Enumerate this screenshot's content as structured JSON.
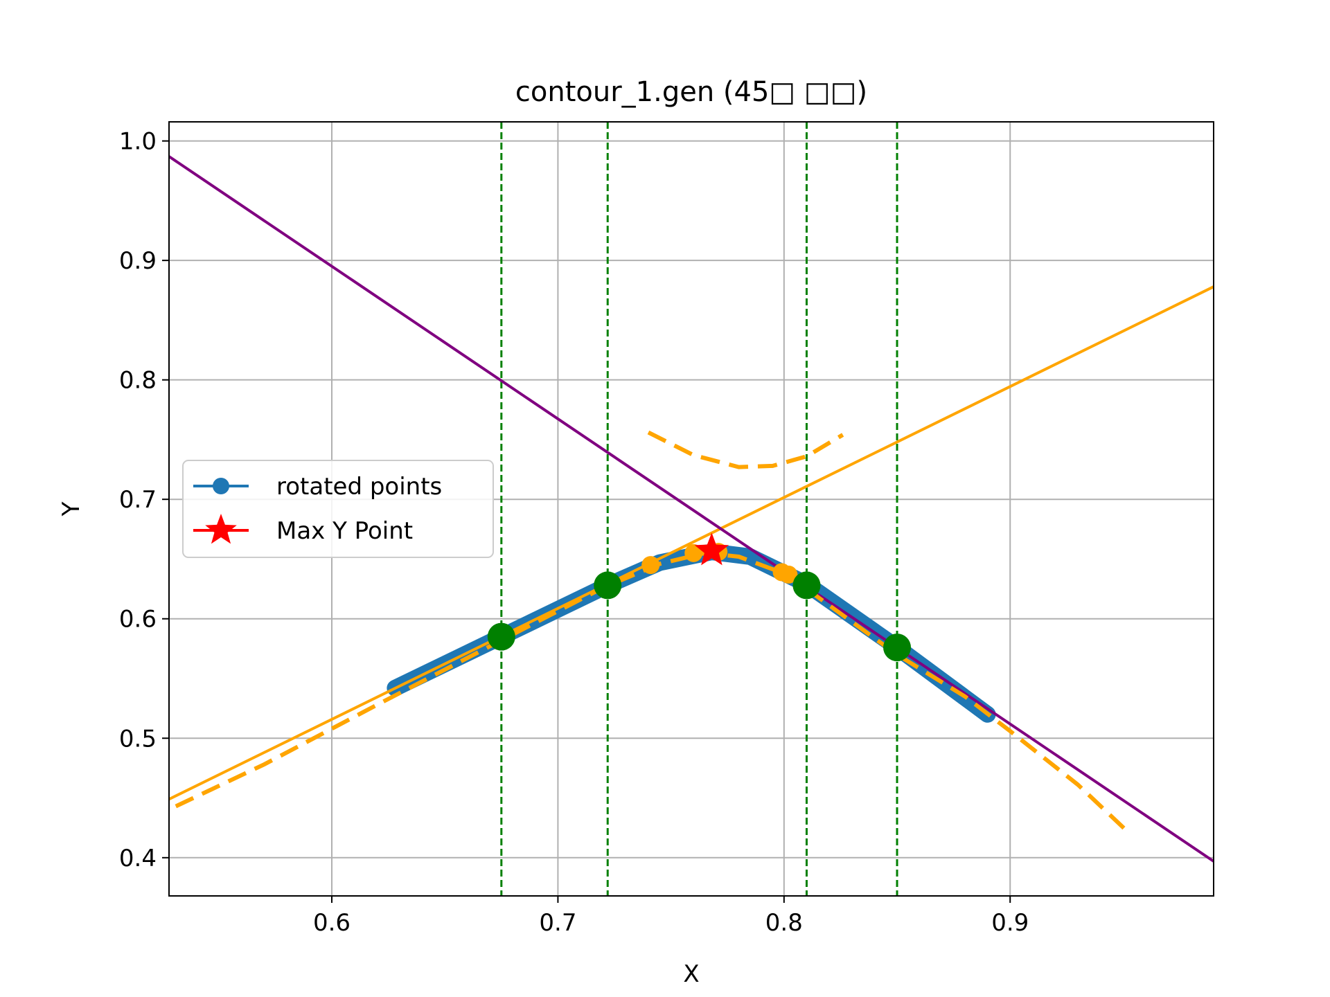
{
  "chart_data": {
    "type": "line",
    "title": "contour_1.gen (45□ □□)",
    "xlabel": "X",
    "ylabel": "Y",
    "xlim": [
      0.528,
      0.99
    ],
    "ylim": [
      0.368,
      1.016
    ],
    "xticks": [
      0.6,
      0.7,
      0.8,
      0.9
    ],
    "yticks": [
      0.4,
      0.5,
      0.6,
      0.7,
      0.8,
      0.9,
      1.0
    ],
    "xtick_labels": [
      "0.6",
      "0.7",
      "0.8",
      "0.9"
    ],
    "ytick_labels": [
      "0.4",
      "0.5",
      "0.6",
      "0.7",
      "0.8",
      "0.9",
      "1.0"
    ],
    "grid": true,
    "legend_position": "center-left",
    "legend": [
      {
        "label": "rotated points",
        "kind": "line-marker",
        "color": "#1f77b4"
      },
      {
        "label": "Max Y Point",
        "kind": "star",
        "color": "#ff0000"
      }
    ],
    "series": [
      {
        "name": "rotated points",
        "style": "thick-line",
        "color": "#1f77b4",
        "points": [
          [
            0.628,
            0.542
          ],
          [
            0.675,
            0.585
          ],
          [
            0.722,
            0.628
          ],
          [
            0.745,
            0.647
          ],
          [
            0.768,
            0.656
          ],
          [
            0.785,
            0.652
          ],
          [
            0.81,
            0.629
          ],
          [
            0.85,
            0.576
          ],
          [
            0.89,
            0.52
          ]
        ]
      },
      {
        "style": "solid",
        "color": "#ffa500",
        "points": [
          [
            0.528,
            0.449
          ],
          [
            0.99,
            0.878
          ]
        ]
      },
      {
        "style": "solid",
        "color": "#800080",
        "points": [
          [
            0.528,
            0.987
          ],
          [
            0.99,
            0.397
          ]
        ]
      },
      {
        "style": "dashed",
        "color": "#ffa500",
        "points": [
          [
            0.531,
            0.443
          ],
          [
            0.57,
            0.478
          ],
          [
            0.62,
            0.528
          ],
          [
            0.675,
            0.582
          ],
          [
            0.72,
            0.626
          ],
          [
            0.745,
            0.646
          ],
          [
            0.765,
            0.655
          ],
          [
            0.78,
            0.652
          ],
          [
            0.8,
            0.638
          ],
          [
            0.81,
            0.625
          ],
          [
            0.85,
            0.57
          ],
          [
            0.88,
            0.535
          ],
          [
            0.9,
            0.506
          ],
          [
            0.93,
            0.461
          ],
          [
            0.953,
            0.42
          ]
        ]
      },
      {
        "style": "dashed",
        "color": "#ffa500",
        "points": [
          [
            0.74,
            0.756
          ],
          [
            0.76,
            0.737
          ],
          [
            0.78,
            0.727
          ],
          [
            0.795,
            0.728
          ],
          [
            0.81,
            0.736
          ],
          [
            0.826,
            0.754
          ]
        ]
      },
      {
        "style": "markers",
        "color": "#ffa500",
        "points": [
          [
            0.741,
            0.645
          ],
          [
            0.76,
            0.655
          ],
          [
            0.771,
            0.656
          ],
          [
            0.799,
            0.639
          ],
          [
            0.802,
            0.637
          ]
        ]
      },
      {
        "style": "markers",
        "color": "#008000",
        "points": [
          [
            0.675,
            0.585
          ],
          [
            0.722,
            0.628
          ],
          [
            0.81,
            0.628
          ],
          [
            0.85,
            0.576
          ]
        ]
      },
      {
        "style": "vlines-dashed",
        "color": "#008000",
        "x": [
          0.675,
          0.722,
          0.81,
          0.85
        ]
      },
      {
        "name": "Max Y Point",
        "style": "star",
        "color": "#ff0000",
        "points": [
          [
            0.768,
            0.657
          ]
        ]
      }
    ]
  }
}
